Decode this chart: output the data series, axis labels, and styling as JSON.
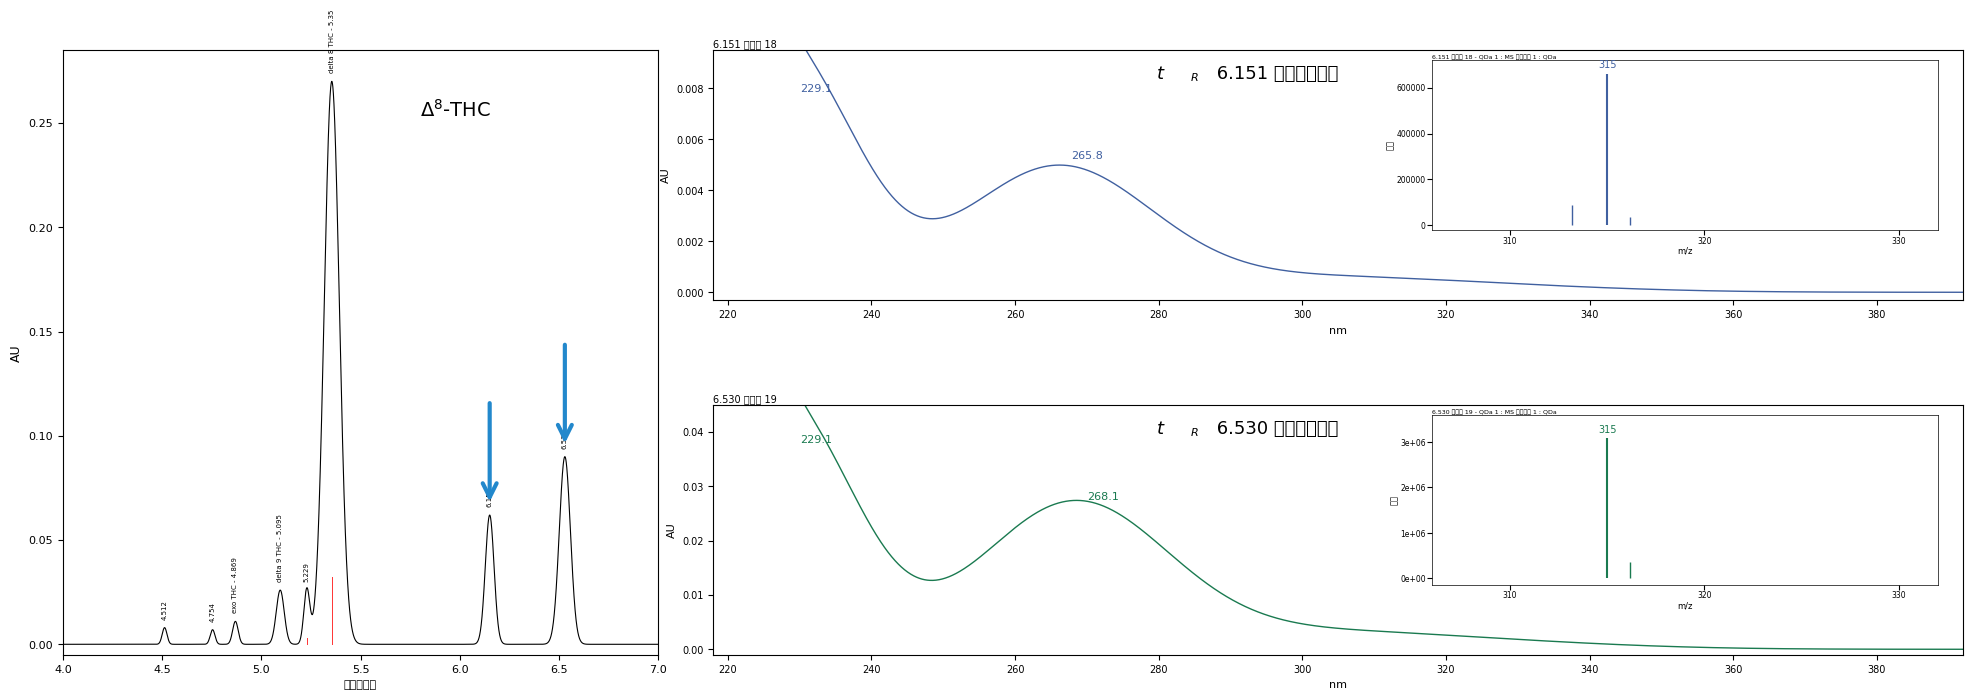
{
  "fig_width": 20.0,
  "fig_height": 6.95,
  "bg_color": "#ffffff",
  "chrom": {
    "xlabel": "時間（分）",
    "ylabel": "AU",
    "xlim": [
      4.0,
      7.0
    ],
    "ylim": [
      -0.005,
      0.285
    ],
    "yticks": [
      0.0,
      0.05,
      0.1,
      0.15,
      0.2,
      0.25
    ],
    "xticks": [
      4.0,
      4.5,
      5.0,
      5.5,
      6.0,
      6.5,
      7.0
    ],
    "peaks": [
      {
        "rt": 4.512,
        "height": 0.008,
        "sigma": 0.012,
        "label": "4.512"
      },
      {
        "rt": 4.754,
        "height": 0.007,
        "sigma": 0.012,
        "label": "4.754"
      },
      {
        "rt": 4.869,
        "height": 0.011,
        "sigma": 0.014,
        "label": "exo THC - 4.869"
      },
      {
        "rt": 5.095,
        "height": 0.026,
        "sigma": 0.02,
        "label": "delta 9 THC - 5.095"
      },
      {
        "rt": 5.229,
        "height": 0.026,
        "sigma": 0.015,
        "label": "5.229"
      },
      {
        "rt": 5.355,
        "height": 0.27,
        "sigma": 0.038,
        "label": "delta 8 THC - 5.35"
      },
      {
        "rt": 6.151,
        "height": 0.062,
        "sigma": 0.022,
        "label": "6.151"
      },
      {
        "rt": 6.53,
        "height": 0.09,
        "sigma": 0.028,
        "label": "6.530"
      }
    ],
    "arrow_peaks": [
      6.151,
      6.53
    ],
    "arrow_color": "#2288cc",
    "line_color": "#000000",
    "red_lines": [
      5.229,
      5.355
    ]
  },
  "uv1": {
    "header": "6.151 ピーク 18",
    "ylabel": "AU",
    "xlabel": "nm",
    "xlim": [
      218,
      392
    ],
    "ylim": [
      -0.0003,
      0.0095
    ],
    "yticks": [
      0.0,
      0.002,
      0.004,
      0.006,
      0.008
    ],
    "xticks": [
      220.0,
      240.0,
      260.0,
      280.0,
      300.0,
      320.0,
      340.0,
      360.0,
      380.0
    ],
    "line_color": "#4060a0",
    "peak1_x": 229.1,
    "peak1_y": 0.0088,
    "peak1_label": "229.1",
    "peak2_x": 265.8,
    "peak2_y": 0.00485,
    "peak2_label": "265.8",
    "tR_label": "t",
    "tR_sub": "R",
    "tR_rest": " 6.151 分の未知成分"
  },
  "ms1": {
    "header": "6.151 ピーク 18 - QDa 1 : MS スキャン 1 : QDa",
    "xlim": [
      306,
      332
    ],
    "ylim": [
      -20000,
      720000
    ],
    "yticks": [
      0,
      200000,
      400000,
      600000
    ],
    "ytick_labels": [
      "0",
      "200000",
      "400000",
      "600000"
    ],
    "xticks": [
      310.0,
      320.0,
      330.0
    ],
    "xlabel": "m/z",
    "ylabel": "強度",
    "peak_x": 315.0,
    "peak_y": 660000,
    "peak_label": "315",
    "small_peak_x": 313.2,
    "small_peak_y": 90000,
    "small_peak2_x": 316.2,
    "small_peak2_y": 35000,
    "bar_color": "#4060a0"
  },
  "uv2": {
    "header": "6.530 ピーク 19",
    "ylabel": "AU",
    "xlabel": "nm",
    "xlim": [
      218,
      392
    ],
    "ylim": [
      -0.001,
      0.045
    ],
    "yticks": [
      0.0,
      0.01,
      0.02,
      0.03,
      0.04
    ],
    "xticks": [
      220.0,
      240.0,
      260.0,
      280.0,
      300.0,
      320.0,
      340.0,
      360.0,
      380.0
    ],
    "line_color": "#1a7a50",
    "peak1_x": 229.1,
    "peak1_y": 0.0415,
    "peak1_label": "229.1",
    "peak2_x": 268.1,
    "peak2_y": 0.0265,
    "peak2_label": "268.1",
    "tR_label": "t",
    "tR_sub": "R",
    "tR_rest": " 6.530 分の未知成分"
  },
  "ms2": {
    "header": "6.530 ピーク 19 - QDa 1 : MS スキャン 1 : QDa",
    "xlim": [
      306,
      332
    ],
    "ylim": [
      -150000.0,
      3600000.0
    ],
    "yticks": [
      0,
      1000000.0,
      2000000.0,
      3000000.0
    ],
    "ytick_labels": [
      "0e+00",
      "1e+06",
      "2e+06",
      "3e+06"
    ],
    "xticks": [
      310.0,
      320.0,
      330.0
    ],
    "xlabel": "m/z",
    "ylabel": "強度",
    "peak_x": 315.0,
    "peak_y": 3100000.0,
    "peak_label": "315",
    "small_peak_x": 316.2,
    "small_peak_y": 350000.0,
    "bar_color": "#1a7a50"
  }
}
